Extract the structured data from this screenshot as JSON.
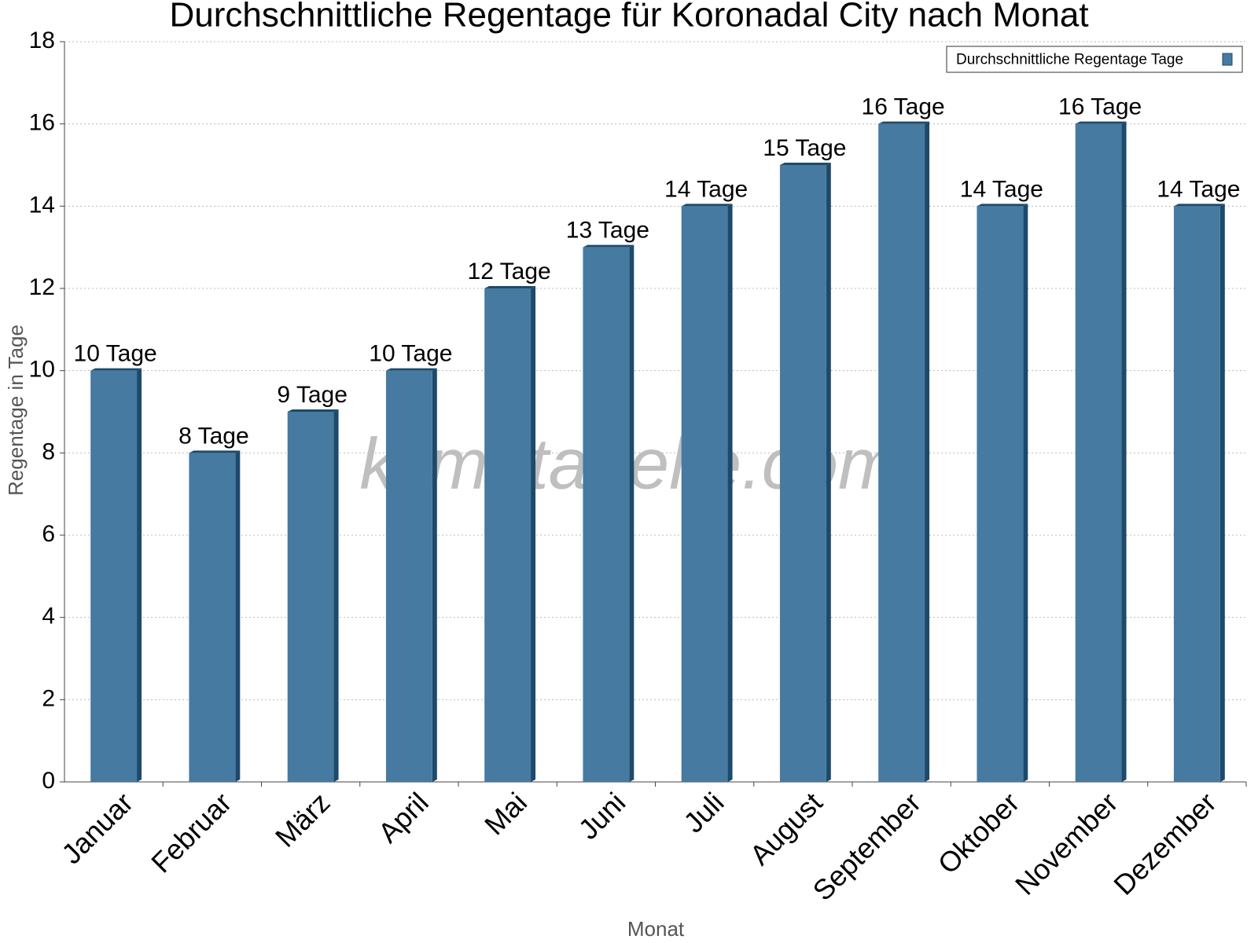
{
  "chart_data": {
    "type": "bar",
    "title": "Durchschnittliche Regentage für Koronadal City nach Monat",
    "x_label": "Monat",
    "y_label": "Regentage in Tage",
    "watermark": "klimatabelle.com",
    "categories": [
      "Januar",
      "Februar",
      "März",
      "April",
      "Mai",
      "Juni",
      "Juli",
      "August",
      "September",
      "Oktober",
      "November",
      "Dezember"
    ],
    "series": [
      {
        "name": "Durchschnittliche Regentage Tage",
        "color": "#467aa0",
        "values": [
          10,
          8,
          9,
          10,
          12,
          13,
          14,
          15,
          16,
          14,
          16,
          14
        ],
        "value_labels": [
          "10 Tage",
          "8 Tage",
          "9 Tage",
          "10 Tage",
          "12 Tage",
          "13 Tage",
          "14 Tage",
          "15 Tage",
          "16 Tage",
          "14 Tage",
          "16 Tage",
          "14 Tage"
        ]
      }
    ],
    "ylim": [
      0,
      18
    ],
    "yticks": [
      0,
      2,
      4,
      6,
      8,
      10,
      12,
      14,
      16,
      18
    ],
    "grid": true,
    "legend": "top-right"
  }
}
